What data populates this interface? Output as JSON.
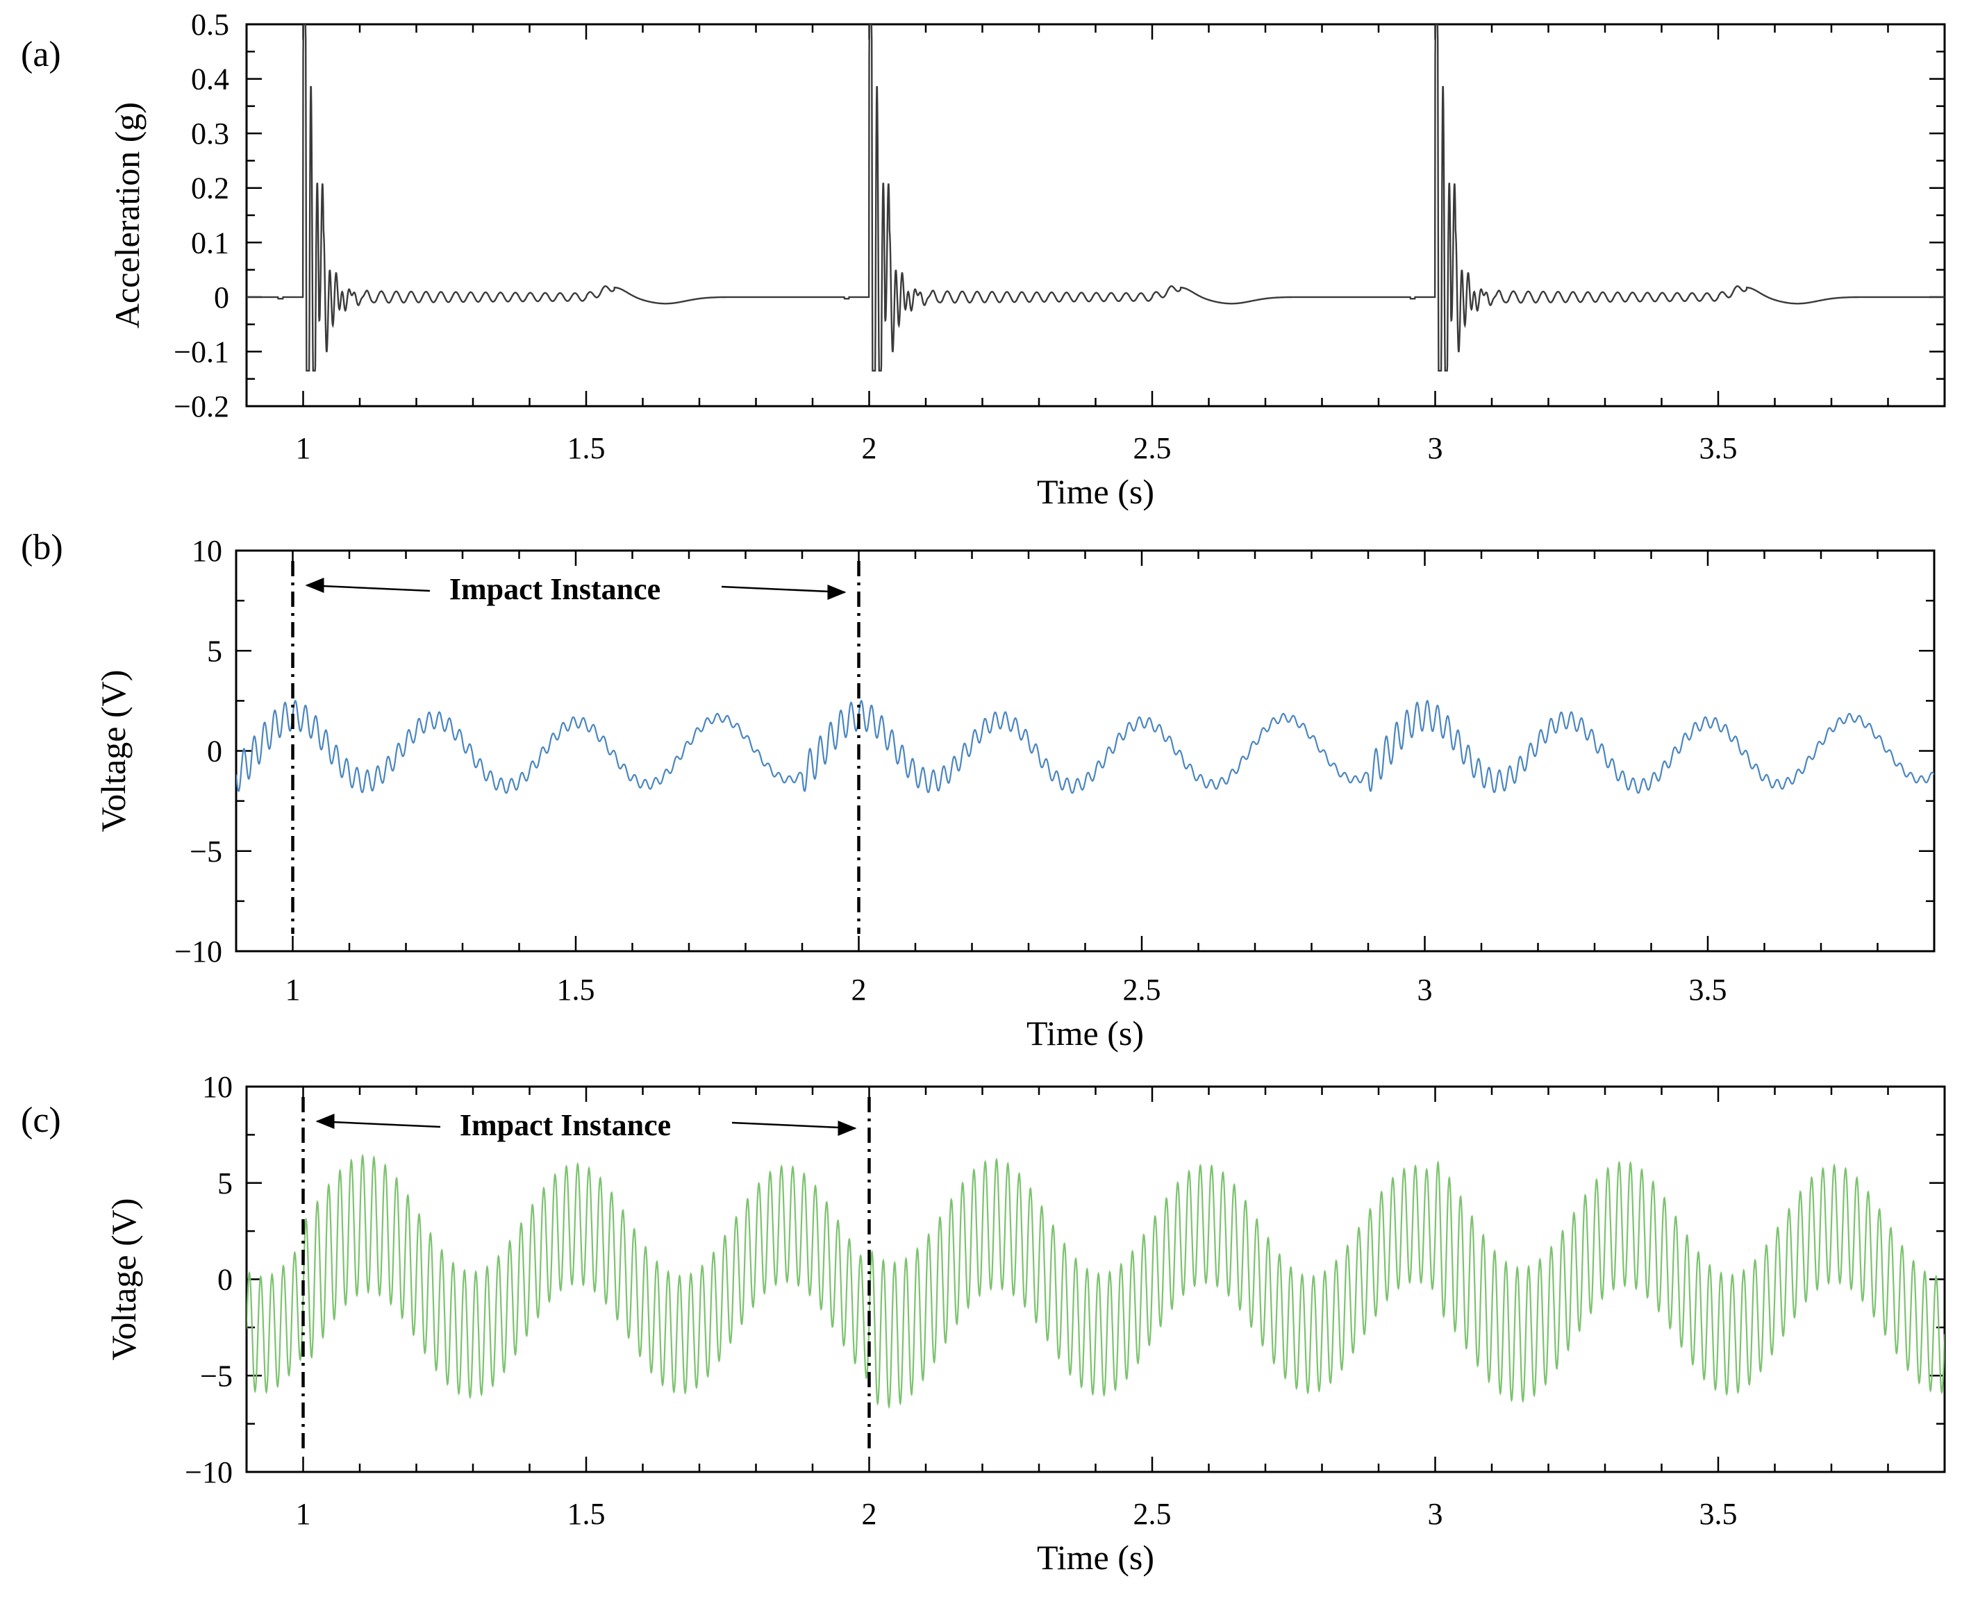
{
  "chart_data": [
    {
      "id": "a",
      "type": "line",
      "panel_label": "(a)",
      "xlabel": "Time (s)",
      "ylabel": "Acceleration (g)",
      "xlim": [
        0.9,
        3.9
      ],
      "ylim": [
        -0.2,
        0.5
      ],
      "xticks": [
        1,
        1.5,
        2,
        2.5,
        3,
        3.5
      ],
      "yticks": [
        0.5,
        0.4,
        0.3,
        0.2,
        0.1,
        0,
        -0.1,
        -0.2
      ],
      "ytick_labels": [
        "0.5",
        "0.4",
        "0.3",
        "0.2",
        "0.1",
        "0",
        "−0.1",
        "−0.2"
      ],
      "line_color": "#3a3a3a",
      "impact_times": [
        1,
        2,
        3
      ],
      "peak_acceleration_g": 0.5,
      "secondary_peak_g": 0.22,
      "min_acceleration_g": -0.135,
      "ringdown_amplitude_g": 0.012,
      "rebound_bump": {
        "time_offset_s": 0.55,
        "peak_g": 0.018,
        "dip_g": -0.012
      }
    },
    {
      "id": "b",
      "type": "line",
      "panel_label": "(b)",
      "xlabel": "Time (s)",
      "ylabel": "Voltage (V)",
      "xlim": [
        0.9,
        3.9
      ],
      "ylim": [
        -10,
        10
      ],
      "xticks": [
        1,
        1.5,
        2,
        2.5,
        3,
        3.5
      ],
      "yticks": [
        10,
        5,
        0,
        -5,
        -10
      ],
      "ytick_labels": [
        "10",
        "5",
        "0",
        "−5",
        "−10"
      ],
      "line_color": "#4a86c0",
      "slow_amplitude_V": 1.6,
      "slow_frequency_Hz": 4,
      "fast_amplitude_V": 0.9,
      "fast_frequency_Hz": 55,
      "impact_times": [
        1,
        2,
        3
      ],
      "annotation": {
        "text": "Impact Instance",
        "from_time": 1.0,
        "to_time": 2.0
      }
    },
    {
      "id": "c",
      "type": "line",
      "panel_label": "(c)",
      "xlabel": "Time (s)",
      "ylabel": "Voltage (V)",
      "xlim": [
        0.9,
        3.9
      ],
      "ylim": [
        -10,
        10
      ],
      "xticks": [
        1,
        1.5,
        2,
        2.5,
        3,
        3.5
      ],
      "yticks": [
        10,
        5,
        0,
        -5,
        -10
      ],
      "ytick_labels": [
        "10",
        "5",
        "0",
        "−5",
        "−10"
      ],
      "line_color": "#7cc36f",
      "slow_amplitude_V": 2.5,
      "slow_frequency_Hz": 2.7,
      "fast_amplitude_V": 3.5,
      "fast_frequency_Hz": 50,
      "impact_times": [
        1,
        2,
        3
      ],
      "annotation": {
        "text": "Impact Instance",
        "from_time": 1.0,
        "to_time": 2.0
      }
    }
  ]
}
